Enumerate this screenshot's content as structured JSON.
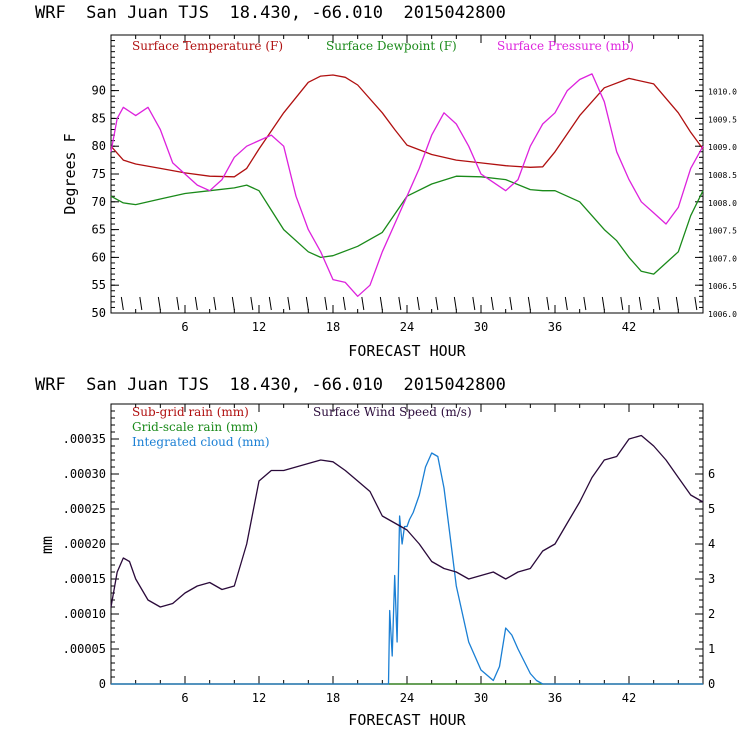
{
  "colors": {
    "axis": "#000000",
    "temperature": "#b01010",
    "dewpoint": "#1a8a1a",
    "pressure": "#dd22dd",
    "subgrid_rain": "#b01010",
    "gridscale_rain": "#1a8a1a",
    "cloud": "#1a7fd4",
    "wind": "#2a0a3a"
  },
  "chart_data": [
    {
      "type": "line",
      "title": "WRF  San Juan TJS  18.430, -66.010  2015042800",
      "xlabel": "FORECAST HOUR",
      "ylabel": "Degrees F",
      "xlim": [
        0,
        48
      ],
      "ylim": [
        50,
        100
      ],
      "y2lim": [
        1006,
        1011
      ],
      "xticks": [
        "6",
        "12",
        "18",
        "24",
        "30",
        "36",
        "42"
      ],
      "xtick_values": [
        6,
        12,
        18,
        24,
        30,
        36,
        42
      ],
      "yticks": [
        "50",
        "55",
        "60",
        "65",
        "70",
        "75",
        "80",
        "85",
        "90"
      ],
      "ytick_values": [
        50,
        55,
        60,
        65,
        70,
        75,
        80,
        85,
        90
      ],
      "y2ticks": [
        "1006.0",
        "1006.5",
        "1007.0",
        "1007.5",
        "1008.0",
        "1008.5",
        "1009.0",
        "1009.5",
        "1010.0"
      ],
      "y2tick_values": [
        1006,
        1006.5,
        1007,
        1007.5,
        1008,
        1008.5,
        1009,
        1009.5,
        1010
      ],
      "grid": false,
      "legend_position": "top-left",
      "wind_barbs": "bottom row",
      "series": [
        {
          "name": "Surface Temperature (F)",
          "axis": "left",
          "x": [
            0,
            1,
            2,
            4,
            6,
            8,
            10,
            11,
            12,
            14,
            16,
            17,
            18,
            19,
            20,
            22,
            23,
            24,
            26,
            28,
            30,
            32,
            34,
            35,
            36,
            38,
            40,
            42,
            44,
            46,
            47,
            48
          ],
          "y": [
            80,
            77.5,
            76.8,
            76,
            75.2,
            74.6,
            74.5,
            76,
            79.5,
            86,
            91.5,
            92.6,
            92.8,
            92.4,
            91,
            86,
            83,
            80.2,
            78.5,
            77.5,
            77,
            76.5,
            76.2,
            76.3,
            79,
            85.5,
            90.5,
            92.2,
            91.2,
            86,
            82.5,
            79.5
          ]
        },
        {
          "name": "Surface Dewpoint (F)",
          "axis": "left",
          "x": [
            0,
            1,
            2,
            4,
            6,
            8,
            10,
            11,
            12,
            13,
            14,
            16,
            17,
            18,
            20,
            22,
            24,
            26,
            28,
            30,
            32,
            34,
            35,
            36,
            38,
            40,
            41,
            42,
            43,
            44,
            46,
            47,
            48
          ],
          "y": [
            71,
            69.8,
            69.5,
            70.5,
            71.5,
            72,
            72.5,
            73,
            72,
            68.5,
            65,
            61,
            60,
            60.3,
            62,
            64.5,
            71,
            73.2,
            74.6,
            74.5,
            74,
            72.2,
            72,
            72,
            70,
            65,
            63,
            60,
            57.5,
            57,
            61,
            67.5,
            72
          ]
        },
        {
          "name": "Surface Pressure (mb)",
          "axis": "right",
          "x": [
            0,
            0.5,
            1,
            2,
            3,
            4,
            5,
            6,
            7,
            8,
            9,
            10,
            11,
            12,
            13,
            14,
            15,
            16,
            17,
            18,
            19,
            20,
            21,
            22,
            23,
            24,
            25,
            26,
            27,
            28,
            29,
            30,
            31,
            32,
            33,
            34,
            35,
            36,
            37,
            38,
            39,
            40,
            41,
            42,
            43,
            44,
            45,
            46,
            47,
            48
          ],
          "y": [
            1008.9,
            1009.5,
            1009.7,
            1009.55,
            1009.7,
            1009.3,
            1008.7,
            1008.5,
            1008.3,
            1008.2,
            1008.4,
            1008.8,
            1009.0,
            1009.1,
            1009.2,
            1009.0,
            1008.1,
            1007.5,
            1007.1,
            1006.6,
            1006.55,
            1006.3,
            1006.5,
            1007.1,
            1007.6,
            1008.1,
            1008.6,
            1009.2,
            1009.6,
            1009.4,
            1009.0,
            1008.5,
            1008.35,
            1008.2,
            1008.4,
            1009.0,
            1009.4,
            1009.6,
            1010.0,
            1010.2,
            1010.3,
            1009.8,
            1008.9,
            1008.4,
            1008.0,
            1007.8,
            1007.6,
            1007.9,
            1008.6,
            1009.0
          ]
        }
      ]
    },
    {
      "type": "line",
      "title": "WRF  San Juan TJS  18.430, -66.010  2015042800",
      "xlabel": "FORECAST HOUR",
      "ylabel": "mm",
      "xlim": [
        0,
        48
      ],
      "ylim": [
        0,
        0.0004
      ],
      "y2lim": [
        0,
        8
      ],
      "xticks": [
        "6",
        "12",
        "18",
        "24",
        "30",
        "36",
        "42"
      ],
      "xtick_values": [
        6,
        12,
        18,
        24,
        30,
        36,
        42
      ],
      "yticks": [
        "0",
        ".00005",
        ".00010",
        ".00015",
        ".00020",
        ".00025",
        ".00030",
        ".00035"
      ],
      "ytick_values": [
        0,
        5e-05,
        0.0001,
        0.00015,
        0.0002,
        0.00025,
        0.0003,
        0.00035
      ],
      "y2ticks": [
        "0",
        "1",
        "2",
        "3",
        "4",
        "5",
        "6"
      ],
      "y2tick_values": [
        0,
        1,
        2,
        3,
        4,
        5,
        6
      ],
      "grid": false,
      "legend_position": "top-left",
      "series": [
        {
          "name": "Sub-grid rain (mm)",
          "axis": "left",
          "x": [
            0,
            48
          ],
          "y": [
            0,
            0
          ]
        },
        {
          "name": "Grid-scale rain (mm)",
          "axis": "left",
          "x": [
            0,
            48
          ],
          "y": [
            0,
            0
          ]
        },
        {
          "name": "Integrated cloud (mm)",
          "axis": "right",
          "x": [
            0,
            22.5,
            22.6,
            22.8,
            23.0,
            23.2,
            23.4,
            23.6,
            23.8,
            24.0,
            24.2,
            24.5,
            25.0,
            25.5,
            26.0,
            26.5,
            27.0,
            27.5,
            28.0,
            29.0,
            30.0,
            31.0,
            31.5,
            32.0,
            32.5,
            33.0,
            34.0,
            34.5,
            35.0,
            48
          ],
          "y": [
            0,
            0,
            2.1,
            0.8,
            3.1,
            1.2,
            4.8,
            4.0,
            4.5,
            4.5,
            4.7,
            4.9,
            5.4,
            6.2,
            6.6,
            6.5,
            5.6,
            4.2,
            2.8,
            1.2,
            0.4,
            0.1,
            0.5,
            1.6,
            1.4,
            1.0,
            0.3,
            0.1,
            0,
            0
          ]
        },
        {
          "name": "Surface Wind Speed (m/s)",
          "axis": "right",
          "x": [
            0,
            0.5,
            1,
            1.5,
            2,
            3,
            4,
            5,
            6,
            7,
            8,
            9,
            10,
            11,
            12,
            13,
            14,
            15,
            16,
            17,
            18,
            19,
            20,
            21,
            22,
            23,
            24,
            25,
            26,
            27,
            28,
            29,
            30,
            31,
            32,
            33,
            34,
            35,
            36,
            37,
            38,
            39,
            40,
            41,
            42,
            43,
            44,
            45,
            46,
            47,
            48
          ],
          "y": [
            2.2,
            3.2,
            3.6,
            3.5,
            3.0,
            2.4,
            2.2,
            2.3,
            2.6,
            2.8,
            2.9,
            2.7,
            2.8,
            4.0,
            5.8,
            6.1,
            6.1,
            6.2,
            6.3,
            6.4,
            6.35,
            6.1,
            5.8,
            5.5,
            4.8,
            4.6,
            4.4,
            4.0,
            3.5,
            3.3,
            3.2,
            3.0,
            3.1,
            3.2,
            3.0,
            3.2,
            3.3,
            3.8,
            4.0,
            4.6,
            5.2,
            5.9,
            6.4,
            6.5,
            7.0,
            7.1,
            6.8,
            6.4,
            5.9,
            5.4,
            5.2
          ]
        }
      ]
    }
  ]
}
